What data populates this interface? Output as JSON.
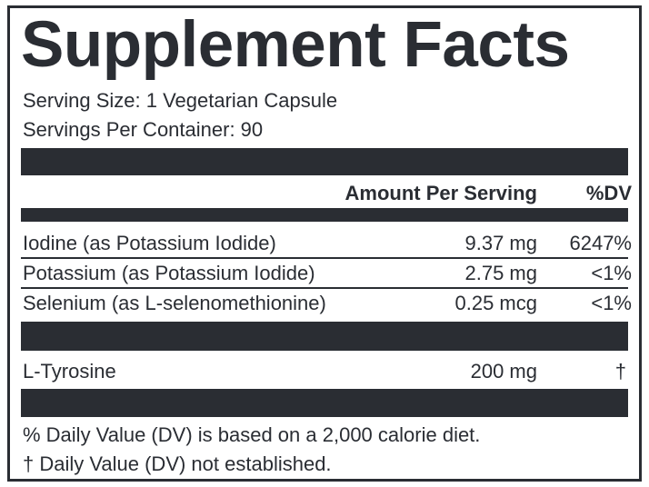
{
  "title": "Supplement Facts",
  "serving_size": "Serving Size: 1 Vegetarian Capsule",
  "servings_per_container": "Servings Per Container: 90",
  "header": {
    "amount": "Amount Per Serving",
    "dv": "%DV"
  },
  "rows": [
    {
      "name": "Iodine (as Potassium Iodide)",
      "amount": "9.37 mg",
      "dv": "6247%"
    },
    {
      "name": "Potassium (as Potassium Iodide)",
      "amount": "2.75 mg",
      "dv": "<1%"
    },
    {
      "name": "Selenium (as L-selenomethionine)",
      "amount": "0.25 mcg",
      "dv": "<1%"
    }
  ],
  "other_rows": [
    {
      "name": "L-Tyrosine",
      "amount": "200 mg",
      "dv": "†"
    }
  ],
  "footnotes": [
    "% Daily Value (DV) is based on a 2,000 calorie diet.",
    "† Daily Value (DV) not established."
  ]
}
